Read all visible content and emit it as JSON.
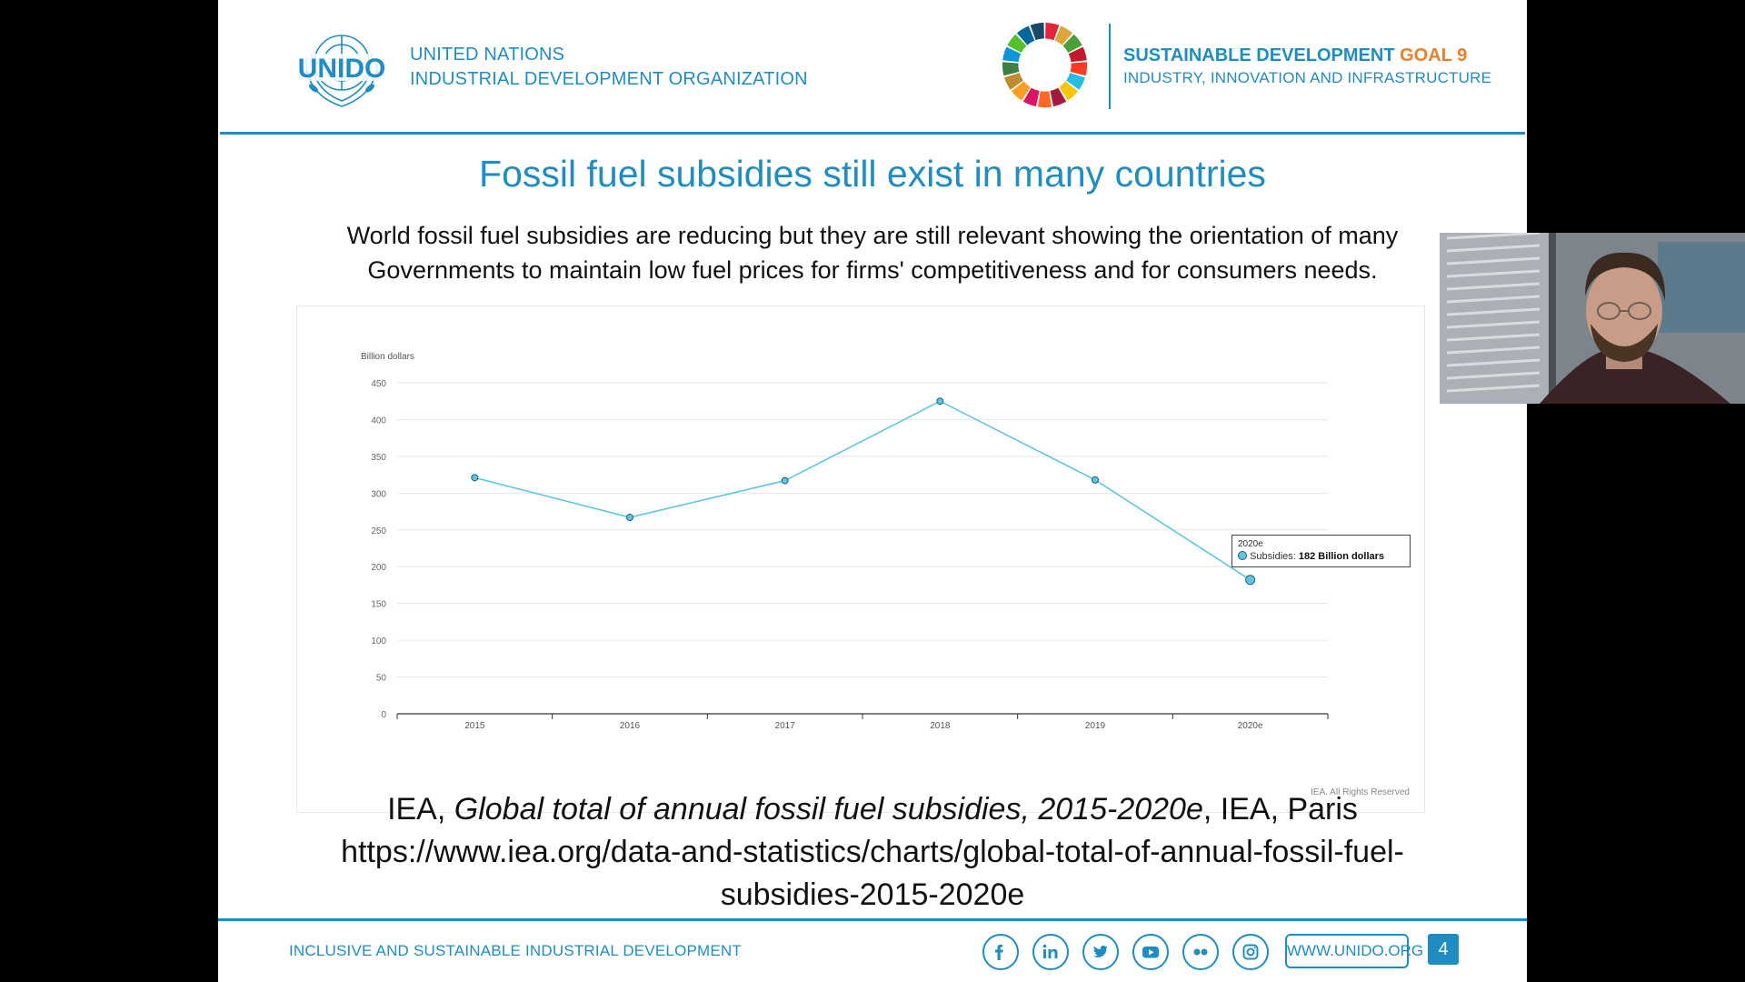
{
  "header": {
    "org_logo_text": "UNIDO",
    "org_line1": "UNITED NATIONS",
    "org_line2": "INDUSTRIAL DEVELOPMENT ORGANIZATION",
    "sdg_title": "SUSTAINABLE DEVELOPMENT",
    "sdg_goal": "GOAL 9",
    "sdg_subtitle": "INDUSTRY, INNOVATION AND INFRASTRUCTURE"
  },
  "slide": {
    "title": "Fossil fuel subsidies still exist in many countries",
    "subtitle_line1": "World fossil fuel subsidies are reducing but they are still relevant showing the orientation of many",
    "subtitle_line2": "Governments to maintain low fuel prices for firms' competitiveness and for consumers needs.",
    "citation_author": "IEA,",
    "citation_title": "Global total of annual fossil fuel subsidies, 2015-2020e",
    "citation_rest": ", IEA, Paris",
    "citation_url_line1": "https://www.iea.org/data-and-statistics/charts/global-total-of-annual-fossil-fuel-",
    "citation_url_line2": "subsidies-2015-2020e",
    "rights": "IEA. All Rights Reserved"
  },
  "chart_data": {
    "type": "line",
    "title": "",
    "ylabel": "Billion dollars",
    "xlabel": "",
    "categories": [
      "2015",
      "2016",
      "2017",
      "2018",
      "2019",
      "2020e"
    ],
    "series": [
      {
        "name": "Subsidies",
        "values": [
          321,
          267,
          317,
          425,
          318,
          182
        ]
      }
    ],
    "ylim": [
      0,
      450
    ],
    "yticks": [
      0,
      50,
      100,
      150,
      200,
      250,
      300,
      350,
      400,
      450
    ],
    "grid": true,
    "line_color": "#5cc7e2",
    "tooltip": {
      "date": "2020e",
      "label": "Subsidies:",
      "value": "182 Billion dollars"
    }
  },
  "footer": {
    "tagline": "INCLUSIVE AND SUSTAINABLE INDUSTRIAL DEVELOPMENT",
    "social_icons": [
      "facebook-icon",
      "linkedin-icon",
      "twitter-icon",
      "youtube-icon",
      "flickr-icon",
      "instagram-icon"
    ],
    "website": "WWW.UNIDO.ORG",
    "page_number": "4"
  },
  "colors": {
    "brand_blue": "#1f8dc2",
    "goal_orange": "#e9802c"
  }
}
